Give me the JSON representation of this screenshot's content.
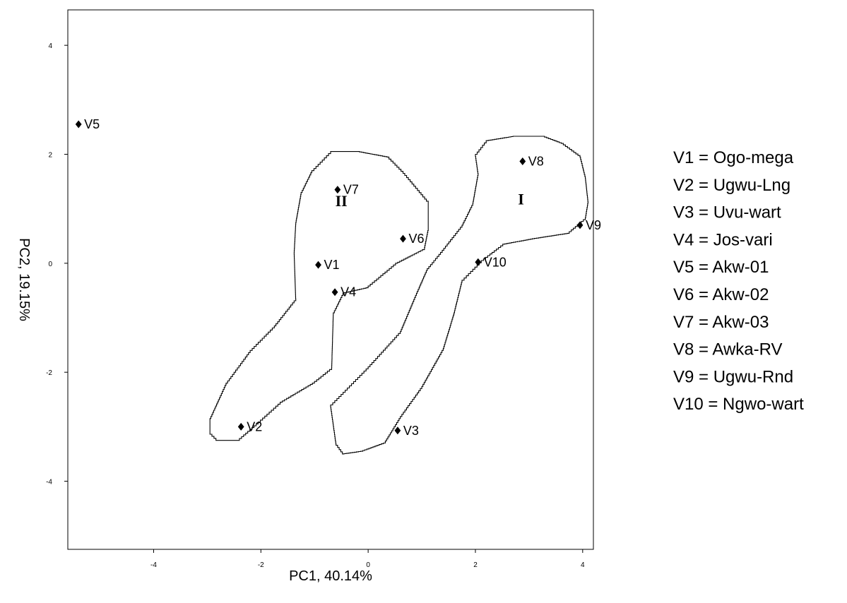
{
  "chart_data": {
    "type": "scatter",
    "title": "",
    "xlabel": "PC1, 40.14%",
    "ylabel": "PC2, 19.15%",
    "xlim": [
      -5.6,
      4.2
    ],
    "ylim": [
      -5.25,
      4.65
    ],
    "x_ticks": [
      -4,
      -2,
      0,
      2,
      4
    ],
    "y_ticks": [
      -4,
      -2,
      0,
      2,
      4
    ],
    "x_tick_labels": [
      "-4",
      "-2",
      "0",
      "2",
      "4"
    ],
    "y_tick_labels": [
      "-4",
      "-2",
      "0",
      "2",
      "4"
    ],
    "grid": false,
    "points": [
      {
        "label": "V1",
        "x": -0.93,
        "y": -0.03
      },
      {
        "label": "V2",
        "x": -2.37,
        "y": -3.0
      },
      {
        "label": "V3",
        "x": 0.55,
        "y": -3.07
      },
      {
        "label": "V4",
        "x": -0.62,
        "y": -0.53
      },
      {
        "label": "V5",
        "x": -5.4,
        "y": 2.55
      },
      {
        "label": "V6",
        "x": 0.65,
        "y": 0.45
      },
      {
        "label": "V7",
        "x": -0.57,
        "y": 1.35
      },
      {
        "label": "V8",
        "x": 2.88,
        "y": 1.87
      },
      {
        "label": "V9",
        "x": 3.95,
        "y": 0.7
      },
      {
        "label": "V10",
        "x": 2.05,
        "y": 0.02
      }
    ],
    "groups": [
      {
        "label": "II",
        "label_x": -0.5,
        "label_y": 1.05,
        "outline": [
          [
            -0.7,
            2.05
          ],
          [
            -0.2,
            2.05
          ],
          [
            0.35,
            1.95
          ],
          [
            0.65,
            1.65
          ],
          [
            1.12,
            1.1
          ],
          [
            1.12,
            0.6
          ],
          [
            1.05,
            0.25
          ],
          [
            0.55,
            0.0
          ],
          [
            0.0,
            -0.45
          ],
          [
            -0.45,
            -0.55
          ],
          [
            -0.65,
            -0.95
          ],
          [
            -0.68,
            -1.95
          ],
          [
            -1.0,
            -2.2
          ],
          [
            -1.6,
            -2.55
          ],
          [
            -2.05,
            -2.95
          ],
          [
            -2.4,
            -3.25
          ],
          [
            -2.8,
            -3.25
          ],
          [
            -2.95,
            -3.1
          ],
          [
            -2.95,
            -2.85
          ],
          [
            -2.65,
            -2.2
          ],
          [
            -2.2,
            -1.6
          ],
          [
            -1.75,
            -1.15
          ],
          [
            -1.35,
            -0.65
          ],
          [
            -1.38,
            0.2
          ],
          [
            -1.35,
            0.75
          ],
          [
            -1.25,
            1.3
          ],
          [
            -1.05,
            1.7
          ]
        ]
      },
      {
        "label": "I",
        "label_x": 2.85,
        "label_y": 1.08,
        "outline": [
          [
            2.2,
            2.25
          ],
          [
            2.7,
            2.33
          ],
          [
            3.25,
            2.33
          ],
          [
            3.6,
            2.2
          ],
          [
            3.95,
            1.95
          ],
          [
            4.05,
            1.55
          ],
          [
            4.1,
            1.1
          ],
          [
            4.05,
            0.8
          ],
          [
            3.75,
            0.55
          ],
          [
            3.1,
            0.45
          ],
          [
            2.55,
            0.35
          ],
          [
            2.15,
            0.05
          ],
          [
            1.75,
            -0.35
          ],
          [
            1.6,
            -0.95
          ],
          [
            1.4,
            -1.6
          ],
          [
            1.0,
            -2.3
          ],
          [
            0.6,
            -2.85
          ],
          [
            0.32,
            -3.3
          ],
          [
            -0.1,
            -3.45
          ],
          [
            -0.45,
            -3.5
          ],
          [
            -0.6,
            -3.3
          ],
          [
            -0.7,
            -2.6
          ],
          [
            -0.35,
            -2.25
          ],
          [
            0.0,
            -1.9
          ],
          [
            0.6,
            -1.25
          ],
          [
            0.9,
            -0.55
          ],
          [
            1.1,
            -0.1
          ],
          [
            1.35,
            0.2
          ],
          [
            1.75,
            0.7
          ],
          [
            1.95,
            1.1
          ],
          [
            2.05,
            1.65
          ],
          [
            2.0,
            2.0
          ]
        ]
      }
    ],
    "legend": [
      "V1 = Ogo-mega",
      "V2 = Ugwu-Lng",
      "V3 = Uvu-wart",
      "V4 = Jos-vari",
      "V5 = Akw-01",
      "V6 = Akw-02",
      "V7 = Akw-03",
      "V8 = Awka-RV",
      "V9 = Ugwu-Rnd",
      "V10 = Ngwo-wart"
    ],
    "legend_position": "right",
    "marker_color": "#000000",
    "line_color": "#000000"
  }
}
